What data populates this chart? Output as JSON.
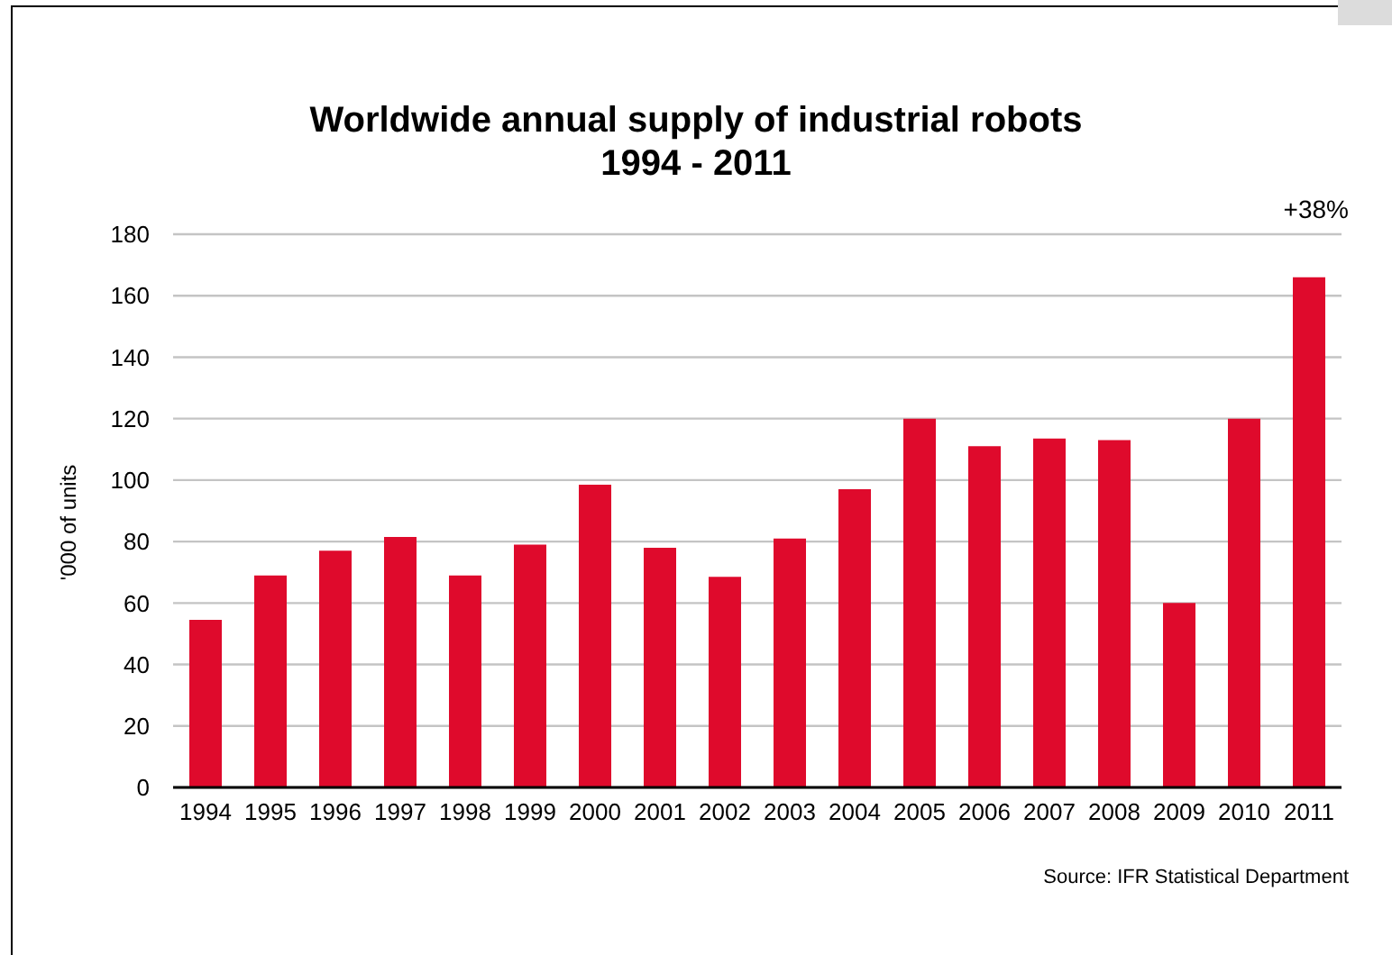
{
  "chart_data": {
    "type": "bar",
    "title": "Worldwide annual supply of industrial robots\n1994 - 2011",
    "ylabel": "'000 of units",
    "categories": [
      "1994",
      "1995",
      "1996",
      "1997",
      "1998",
      "1999",
      "2000",
      "2001",
      "2002",
      "2003",
      "2004",
      "2005",
      "2006",
      "2007",
      "2008",
      "2009",
      "2010",
      "2011"
    ],
    "values": [
      54.5,
      69,
      77,
      81.5,
      69,
      79,
      98.5,
      78,
      68.5,
      81,
      97,
      120,
      111,
      113.5,
      113,
      60,
      120,
      166
    ],
    "color": "#df0a2c",
    "ylim": [
      0,
      180
    ],
    "yticks": [
      0,
      20,
      40,
      60,
      80,
      100,
      120,
      140,
      160,
      180
    ],
    "grid": "y",
    "annotations": [
      "+38%",
      "Source: IFR Statistical Department"
    ]
  }
}
